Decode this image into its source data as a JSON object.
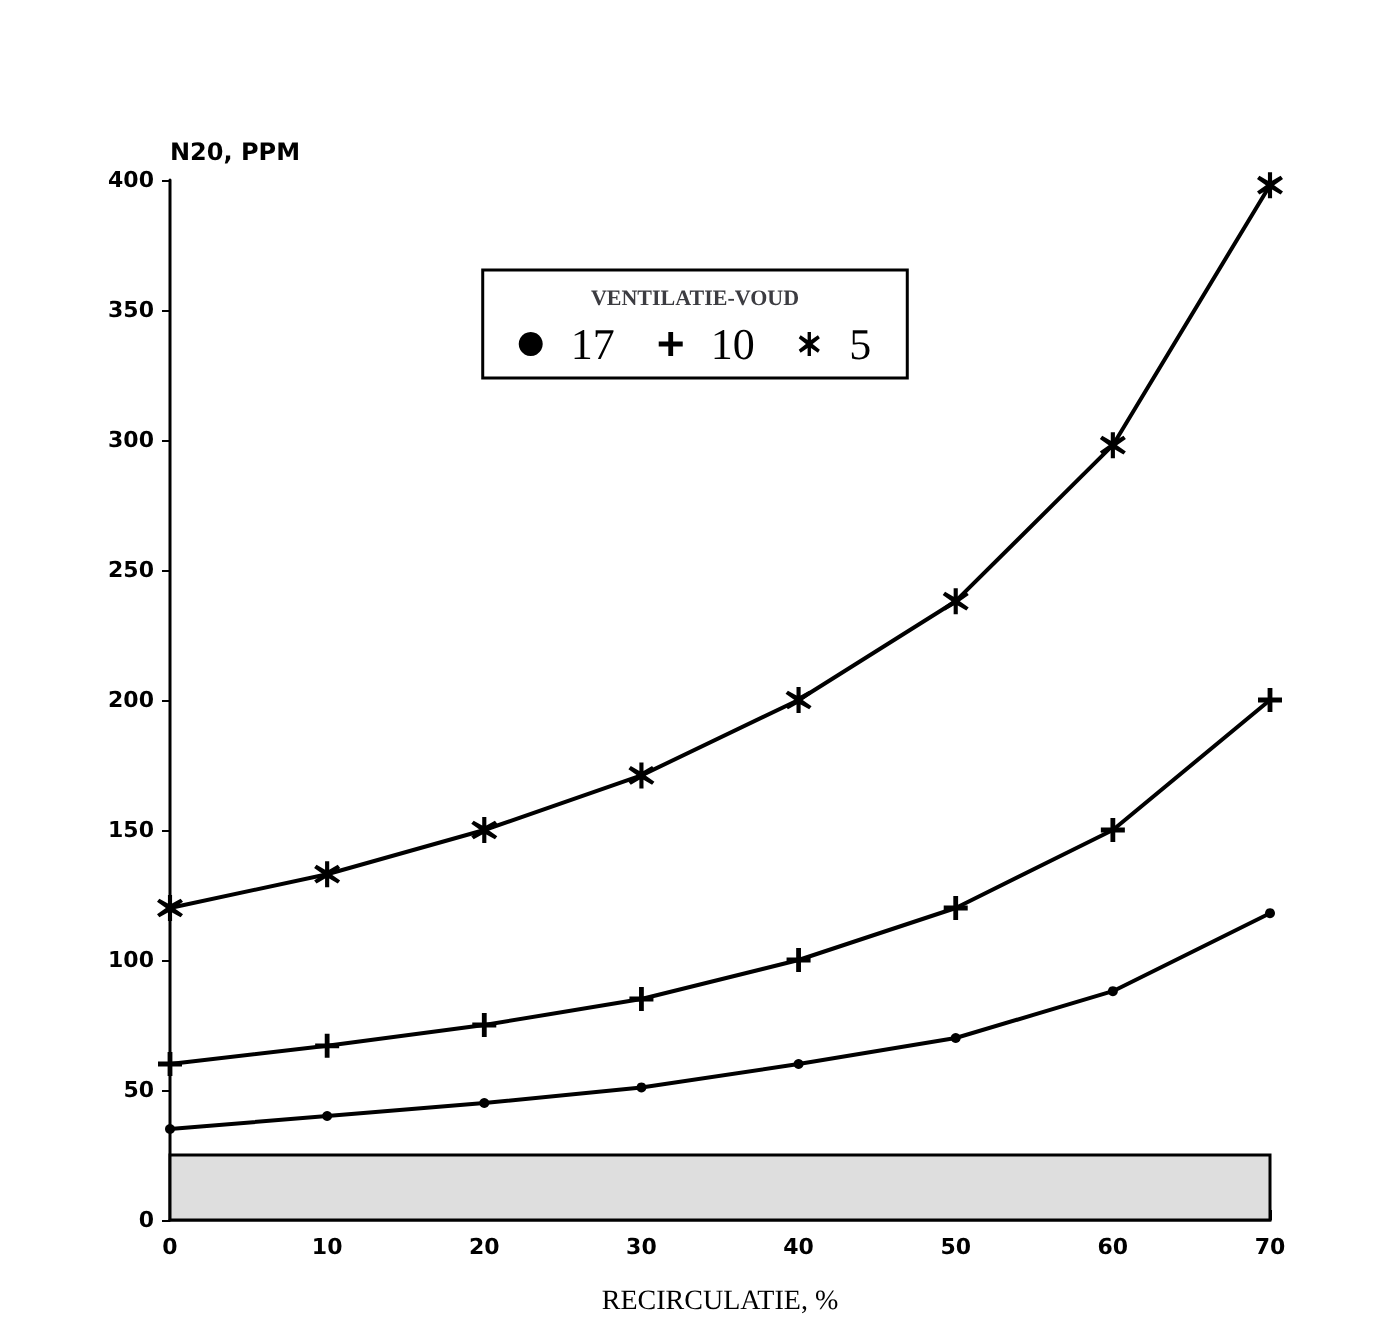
{
  "chart_data": {
    "type": "line",
    "xlabel": "RECIRCULATIE, %",
    "ylabel": "N20, PPM",
    "legend_title": "VENTILATIE-VOUD",
    "x": [
      0,
      10,
      20,
      30,
      40,
      50,
      60,
      70
    ],
    "series": [
      {
        "name": "17",
        "color": "#000000",
        "marker": "circle",
        "values": [
          35,
          40,
          45,
          51,
          60,
          70,
          88,
          118
        ]
      },
      {
        "name": "10",
        "color": "#000000",
        "marker": "cross",
        "values": [
          60,
          67,
          75,
          85,
          100,
          120,
          150,
          200
        ]
      },
      {
        "name": "5",
        "color": "#000000",
        "marker": "star",
        "values": [
          120,
          133,
          150,
          171,
          200,
          238,
          298,
          398
        ]
      }
    ],
    "bands": [
      {
        "axis": "y",
        "from": 0,
        "to": 25,
        "color": "#dedede"
      }
    ],
    "xlim": [
      0,
      70
    ],
    "xticks": [
      0,
      10,
      20,
      30,
      40,
      50,
      60,
      70
    ],
    "ylim": [
      0,
      400
    ],
    "yticks": [
      0,
      50,
      100,
      150,
      200,
      250,
      300,
      350,
      400
    ],
    "grid": false,
    "legend": "top",
    "line_style": "solid"
  }
}
